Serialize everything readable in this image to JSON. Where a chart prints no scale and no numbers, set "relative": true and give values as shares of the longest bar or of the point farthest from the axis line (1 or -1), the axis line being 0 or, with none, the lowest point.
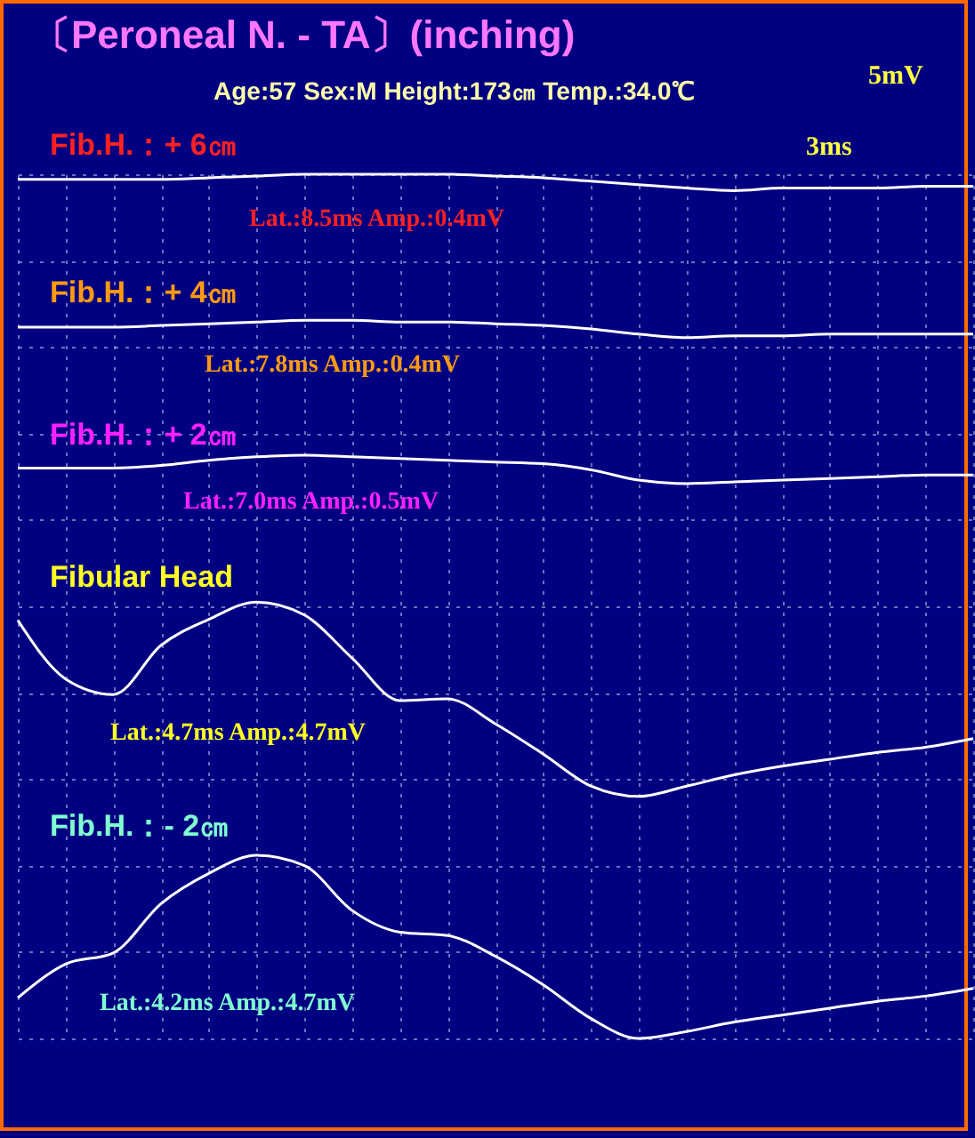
{
  "chart_data": {
    "type": "line",
    "title": "〔Peroneal N. - TA〕(inching)",
    "subtitle": "Age:57  Sex:M  Height:173㎝  Temp.:34.0℃",
    "relative": true,
    "grid": true,
    "legend": false,
    "categories": [
      null,
      null,
      null,
      null,
      null,
      null,
      null,
      null,
      null,
      null,
      null,
      null,
      null,
      null,
      null,
      null,
      null,
      null,
      null,
      null,
      null
    ],
    "series": [
      {
        "name": "Fib.H.：+ 6㎝",
        "color": "#ffffff",
        "values": [
          0.994,
          0.994,
          0.994,
          0.994,
          0.996,
          0.998,
          1,
          1,
          1,
          1,
          0.998,
          0.996,
          0.992,
          0.988,
          0.984,
          0.981,
          0.984,
          0.984,
          0.984,
          0.986,
          0.986
        ]
      },
      {
        "name": "Fib.H.：+ 4㎝",
        "color": "#ffffff",
        "values": [
          0.823,
          0.823,
          0.823,
          0.825,
          0.827,
          0.829,
          0.831,
          0.831,
          0.829,
          0.829,
          0.827,
          0.825,
          0.821,
          0.815,
          0.811,
          0.813,
          0.813,
          0.815,
          0.815,
          0.815,
          0.815
        ]
      },
      {
        "name": "Fib.H.：+ 2㎝",
        "color": "#ffffff",
        "values": [
          0.66,
          0.66,
          0.66,
          0.663,
          0.669,
          0.673,
          0.675,
          0.673,
          0.671,
          0.669,
          0.667,
          0.665,
          0.658,
          0.646,
          0.642,
          0.644,
          0.646,
          0.648,
          0.65,
          0.652,
          0.652
        ]
      },
      {
        "name": "Fibular Head",
        "color": "#ffffff",
        "values": [
          0.484,
          0.416,
          0.398,
          0.455,
          0.485,
          0.505,
          0.49,
          0.44,
          0.391,
          0.393,
          0.364,
          0.329,
          0.292,
          0.28,
          0.292,
          0.305,
          0.315,
          0.323,
          0.331,
          0.337,
          0.347
        ]
      },
      {
        "name": "Fib.H.：- 2㎝",
        "color": "#ffffff",
        "values": [
          0.047,
          0.086,
          0.099,
          0.156,
          0.191,
          0.212,
          0.2,
          0.148,
          0.123,
          0.119,
          0.095,
          0.062,
          0.023,
          0,
          0.008,
          0.019,
          0.027,
          0.035,
          0.043,
          0.049,
          0.058
        ]
      }
    ],
    "annotations": [
      "Lat.:8.5ms Amp.:0.4mV",
      "Lat.:7.8ms Amp.:0.4mV",
      "Lat.:7.0ms Amp.:0.5mV",
      "Lat.:4.7ms Amp.:4.7mV",
      "Lat.:4.2ms Amp.:4.7mV",
      "5mV",
      "3ms"
    ]
  }
}
